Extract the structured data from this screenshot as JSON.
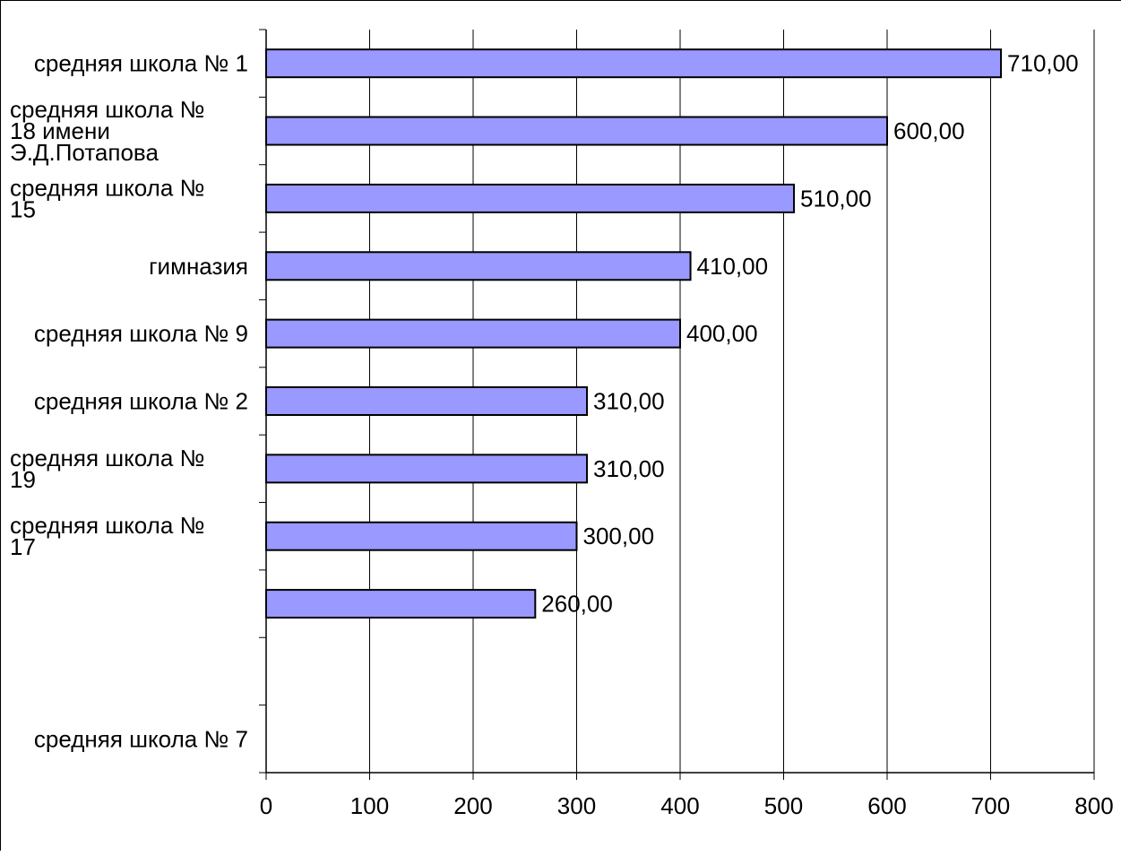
{
  "chart_data": {
    "type": "bar",
    "orientation": "horizontal",
    "categories": [
      "средняя школа № 1",
      "средняя школа № 18 имени Э.Д.Потапова",
      "средняя школа № 15",
      "гимназия",
      "средняя школа № 9",
      "средняя школа № 2",
      "средняя школа № 19",
      "средняя школа № 17",
      "",
      "",
      "средняя школа № 7"
    ],
    "values": [
      710,
      600,
      510,
      410,
      400,
      310,
      310,
      300,
      260,
      null,
      null
    ],
    "data_labels": [
      "710,00",
      "600,00",
      "510,00",
      "410,00",
      "400,00",
      "310,00",
      "310,00",
      "300,00",
      "260,00",
      "",
      ""
    ],
    "xlim": [
      0,
      800
    ],
    "x_ticks": [
      0,
      100,
      200,
      300,
      400,
      500,
      600,
      700,
      800
    ],
    "grid": "vertical",
    "legend": "none",
    "title": "",
    "xlabel": "",
    "ylabel": "",
    "colors": {
      "bar_fill": "#9999ff",
      "bar_stroke": "#000000",
      "grid": "#000000"
    }
  }
}
